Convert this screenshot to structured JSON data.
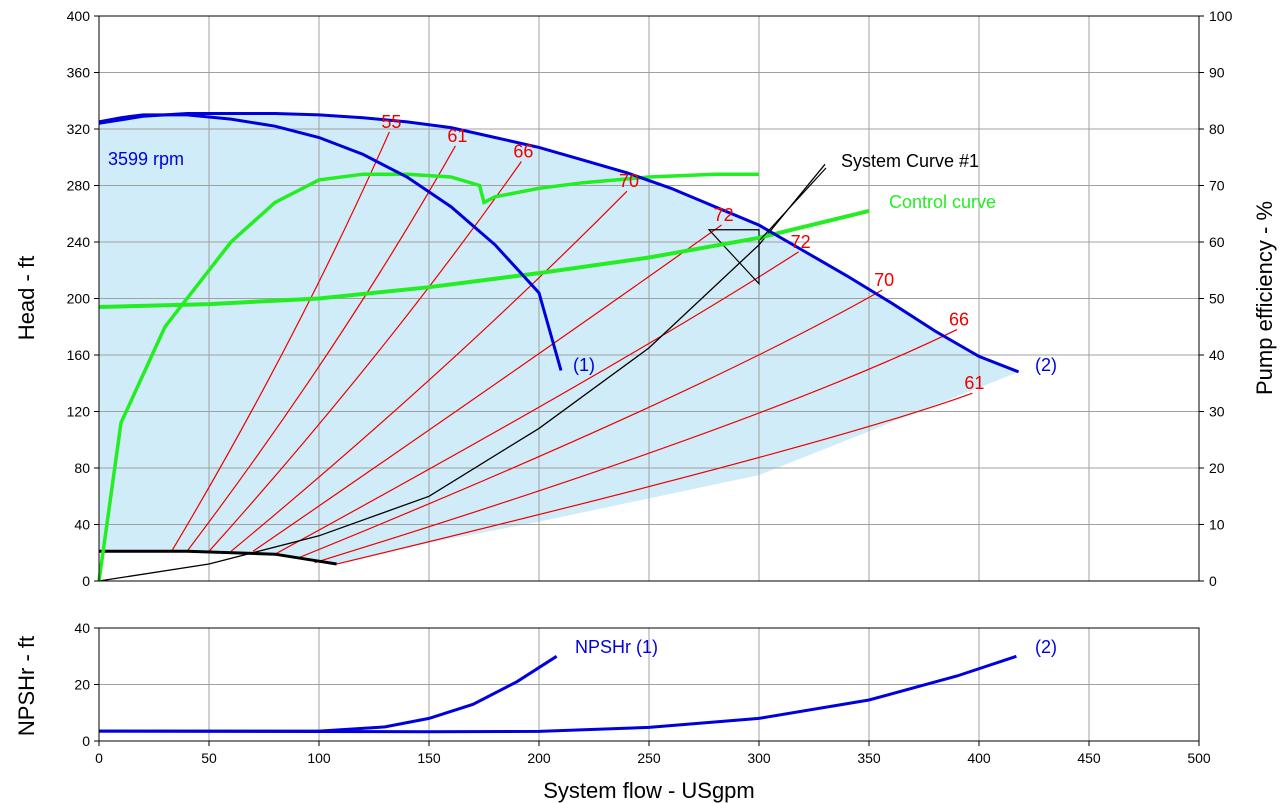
{
  "chart_data": [
    {
      "type": "line",
      "title": "",
      "xlabel": "System flow - USgpm",
      "ylabel": "Head - ft",
      "y2label": "Pump efficiency - %",
      "xlim": [
        0,
        500
      ],
      "ylim": [
        0,
        400
      ],
      "y2lim": [
        0,
        100
      ],
      "xticks": [
        0,
        50,
        100,
        150,
        200,
        250,
        300,
        350,
        400,
        450,
        500
      ],
      "yticks": [
        0,
        40,
        80,
        120,
        160,
        200,
        240,
        280,
        320,
        360,
        400
      ],
      "y2ticks": [
        0,
        10,
        20,
        30,
        40,
        50,
        60,
        70,
        80,
        90,
        100
      ],
      "grid": true,
      "legend": "none",
      "colors": {
        "pump": "#0000dd",
        "efficiency": "#ee0000",
        "control": "#22ee22",
        "system": "#000000",
        "area": "#d0ecf8"
      },
      "series": [
        {
          "label": "(1)",
          "role": "pump-curve",
          "points": [
            [
              0,
              325
            ],
            [
              10,
              328
            ],
            [
              20,
              330
            ],
            [
              40,
              330
            ],
            [
              60,
              327
            ],
            [
              80,
              322
            ],
            [
              100,
              314
            ],
            [
              120,
              302
            ],
            [
              140,
              286
            ],
            [
              160,
              265
            ],
            [
              180,
              238
            ],
            [
              200,
              204
            ],
            [
              210,
              149
            ]
          ]
        },
        {
          "label": "(2)",
          "role": "pump-curve",
          "points": [
            [
              0,
              324
            ],
            [
              20,
              329
            ],
            [
              40,
              331
            ],
            [
              60,
              331
            ],
            [
              80,
              331
            ],
            [
              100,
              330
            ],
            [
              120,
              328
            ],
            [
              140,
              325
            ],
            [
              160,
              321
            ],
            [
              180,
              314
            ],
            [
              200,
              307
            ],
            [
              220,
              298
            ],
            [
              240,
              289
            ],
            [
              260,
              278
            ],
            [
              280,
              265
            ],
            [
              300,
              252
            ],
            [
              320,
              234
            ],
            [
              340,
              216
            ],
            [
              360,
              197
            ],
            [
              380,
              177
            ],
            [
              400,
              159
            ],
            [
              418,
              148
            ]
          ]
        },
        {
          "label": "System Curve #1",
          "role": "system-curve",
          "points": [
            [
              0,
              0
            ],
            [
              50,
              12
            ],
            [
              100,
              32
            ],
            [
              150,
              60
            ],
            [
              200,
              108
            ],
            [
              250,
              165
            ],
            [
              300,
              238
            ],
            [
              330,
              295
            ]
          ]
        },
        {
          "label": "NPSHr",
          "role": "npsh-at-zero-speed",
          "points": [
            [
              0,
              21
            ],
            [
              40,
              21
            ],
            [
              80,
              19
            ],
            [
              100,
              14
            ],
            [
              108,
              12
            ]
          ]
        },
        {
          "label": "Control curve",
          "role": "control-curve",
          "points": [
            [
              0,
              194
            ],
            [
              50,
              196
            ],
            [
              100,
              200
            ],
            [
              150,
              208
            ],
            [
              200,
              218
            ],
            [
              250,
              229
            ],
            [
              300,
              243
            ],
            [
              350,
              262
            ]
          ]
        },
        {
          "label": "",
          "role": "efficiency-curve",
          "axis": "y2",
          "points": [
            [
              0,
              0
            ],
            [
              10,
              28
            ],
            [
              30,
              45
            ],
            [
              60,
              60
            ],
            [
              80,
              67
            ],
            [
              100,
              71
            ],
            [
              120,
              72
            ],
            [
              140,
              72
            ],
            [
              160,
              71.5
            ],
            [
              173,
              70
            ],
            [
              175,
              67
            ],
            [
              180,
              68
            ],
            [
              200,
              69.5
            ],
            [
              220,
              70.5
            ],
            [
              250,
              71.5
            ],
            [
              280,
              72
            ],
            [
              300,
              72
            ]
          ]
        }
      ],
      "efficiency_labels": [
        {
          "text": "55",
          "points": [
            [
              33,
              21
            ],
            [
              90,
              170
            ],
            [
              132,
              318
            ]
          ]
        },
        {
          "text": "61",
          "points": [
            [
              40,
              21
            ],
            [
              110,
              165
            ],
            [
              162,
              308
            ]
          ]
        },
        {
          "text": "66",
          "points": [
            [
              50,
              21
            ],
            [
              130,
              160
            ],
            [
              192,
              297
            ]
          ]
        },
        {
          "text": "70",
          "points": [
            [
              60,
              21
            ],
            [
              160,
              150
            ],
            [
              240,
              276
            ]
          ]
        },
        {
          "text": "72",
          "points": [
            [
              70,
              21
            ],
            [
              200,
              160
            ],
            [
              283,
              252
            ]
          ]
        },
        {
          "text": "72",
          "points": [
            [
              80,
              19
            ],
            [
              240,
              155
            ],
            [
              318,
              233
            ]
          ]
        },
        {
          "text": "70",
          "points": [
            [
              90,
              16
            ],
            [
              270,
              130
            ],
            [
              356,
              206
            ]
          ]
        },
        {
          "text": "66",
          "points": [
            [
              98,
              13
            ],
            [
              300,
              110
            ],
            [
              390,
              178
            ]
          ]
        },
        {
          "text": "61",
          "points": [
            [
              108,
              12
            ],
            [
              330,
              95
            ],
            [
              397,
              133
            ]
          ]
        }
      ],
      "label_texts": {
        "speed": "3599 rpm",
        "system": "System Curve #1",
        "control": "Control curve",
        "pump1": "(1)",
        "pump2": "(2)"
      }
    },
    {
      "type": "line",
      "title": "",
      "xlabel": "System flow - USgpm",
      "ylabel": "NPSHr - ft",
      "xlim": [
        0,
        500
      ],
      "ylim": [
        0,
        40
      ],
      "xticks": [
        0,
        50,
        100,
        150,
        200,
        250,
        300,
        350,
        400,
        450,
        500
      ],
      "yticks": [
        0,
        20,
        40
      ],
      "grid": true,
      "series": [
        {
          "label": "NPSHr (1)",
          "points": [
            [
              0,
              3.5
            ],
            [
              100,
              3.5
            ],
            [
              130,
              5
            ],
            [
              150,
              8
            ],
            [
              170,
              13
            ],
            [
              190,
              21
            ],
            [
              208,
              30
            ]
          ]
        },
        {
          "label": "(2)",
          "points": [
            [
              0,
              3.5
            ],
            [
              150,
              3.3
            ],
            [
              200,
              3.4
            ],
            [
              250,
              4.8
            ],
            [
              300,
              8
            ],
            [
              350,
              14.5
            ],
            [
              390,
              23
            ],
            [
              417,
              30
            ]
          ]
        }
      ]
    }
  ]
}
